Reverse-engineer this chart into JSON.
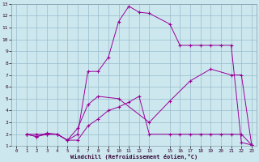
{
  "xlabel": "Windchill (Refroidissement éolien,°C)",
  "background_color": "#cce8ee",
  "line_color": "#990099",
  "grid_color": "#99bbcc",
  "xlim": [
    -0.5,
    23.5
  ],
  "ylim": [
    1,
    13
  ],
  "xticks": [
    0,
    1,
    2,
    3,
    4,
    5,
    6,
    7,
    8,
    9,
    10,
    11,
    12,
    13,
    15,
    16,
    17,
    18,
    19,
    20,
    21,
    22,
    23
  ],
  "yticks": [
    1,
    2,
    3,
    4,
    5,
    6,
    7,
    8,
    9,
    10,
    11,
    12,
    13
  ],
  "line1_x": [
    1,
    2,
    3,
    4,
    5,
    6,
    7,
    8,
    9,
    10,
    11,
    12,
    13,
    15,
    16,
    17,
    18,
    19,
    20,
    21,
    22,
    23
  ],
  "line1_y": [
    2,
    2,
    2,
    2,
    1.5,
    2,
    7.3,
    7.3,
    8.5,
    11.5,
    12.8,
    12.3,
    12.2,
    11.3,
    9.5,
    9.5,
    9.5,
    9.5,
    9.5,
    9.5,
    1.3,
    1.1
  ],
  "line2_x": [
    1,
    2,
    3,
    4,
    5,
    6,
    7,
    8,
    10,
    13,
    15,
    17,
    19,
    21,
    22,
    23
  ],
  "line2_y": [
    2,
    1.8,
    2,
    2,
    1.5,
    2.5,
    4.5,
    5.2,
    5.0,
    3.0,
    4.8,
    6.5,
    7.5,
    7.0,
    7.0,
    1.1
  ],
  "line3_x": [
    1,
    2,
    3,
    4,
    5,
    6,
    7,
    8,
    9,
    10,
    11,
    12,
    13,
    15,
    16,
    17,
    18,
    19,
    20,
    21,
    22,
    23
  ],
  "line3_y": [
    2,
    1.8,
    2.1,
    2,
    1.5,
    1.5,
    2.7,
    3.3,
    4.0,
    4.3,
    4.7,
    5.2,
    2.0,
    2.0,
    2.0,
    2.0,
    2.0,
    2.0,
    2.0,
    2.0,
    2.0,
    1.1
  ]
}
